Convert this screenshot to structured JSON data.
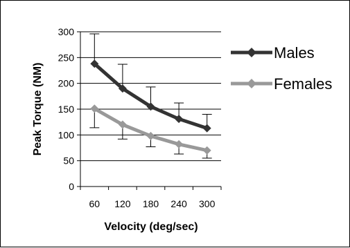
{
  "chart_data": {
    "type": "line",
    "title": "",
    "xlabel": "Velocity (deg/sec)",
    "ylabel": "Peak Torque (NM)",
    "categories": [
      "60",
      "120",
      "180",
      "240",
      "300"
    ],
    "x": [
      60,
      120,
      180,
      240,
      300
    ],
    "ylim": [
      0,
      300
    ],
    "yticks": [
      0,
      50,
      100,
      150,
      200,
      250,
      300
    ],
    "grid": "horizontal",
    "legend_position": "right",
    "series": [
      {
        "name": "Males",
        "color": "#333333",
        "marker": "diamond",
        "values": [
          238,
          190,
          155,
          131,
          113
        ],
        "error_upper": [
          296,
          237,
          193,
          162,
          140
        ],
        "error_lower": [
          238,
          190,
          155,
          131,
          113
        ]
      },
      {
        "name": "Females",
        "color": "#999999",
        "marker": "diamond",
        "values": [
          151,
          120,
          98,
          82,
          70
        ],
        "error_upper": [
          151,
          120,
          98,
          82,
          70
        ],
        "error_lower": [
          114,
          92,
          77,
          63,
          55
        ]
      }
    ]
  }
}
